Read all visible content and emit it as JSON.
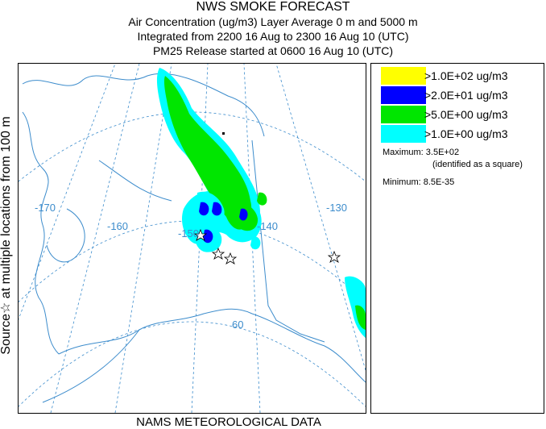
{
  "header": {
    "title": "NWS SMOKE FORECAST",
    "line2": "Air Concentration (ug/m3) Layer Average    0 m and  5000 m",
    "line3": "Integrated from 2200 16 Aug to 2300 16 Aug 10 (UTC)",
    "line4": "PM25 Release started at 0600 16 Aug 10 (UTC)"
  },
  "side_label": "Source☆ at multiple locations    from   100 m",
  "map": {
    "longitude_labels": [
      "-170",
      "-160",
      "-150",
      "-140",
      "-130"
    ],
    "latitude_labels": [
      "60"
    ],
    "colors": {
      "yellow": "#ffff00",
      "blue": "#0000ff",
      "green": "#00e600",
      "cyan": "#00ffff",
      "gridline": "#3c8ccc",
      "coastline": "#3c8ccc",
      "border": "#3c8ccc"
    }
  },
  "legend": {
    "items": [
      {
        "label": ">1.0E+02 ug/m3",
        "color": "#ffff00"
      },
      {
        "label": ">2.0E+01 ug/m3",
        "color": "#0000ff"
      },
      {
        "label": ">5.0E+00 ug/m3",
        "color": "#00e600"
      },
      {
        "label": ">1.0E+00 ug/m3",
        "color": "#00ffff"
      }
    ],
    "maximum_label": "Maximum: 3.5E+02",
    "maximum_note": "(identified as a square)",
    "minimum_label": "Minimum: 8.5E-35"
  },
  "footer": "NAMS METEOROLOGICAL DATA"
}
